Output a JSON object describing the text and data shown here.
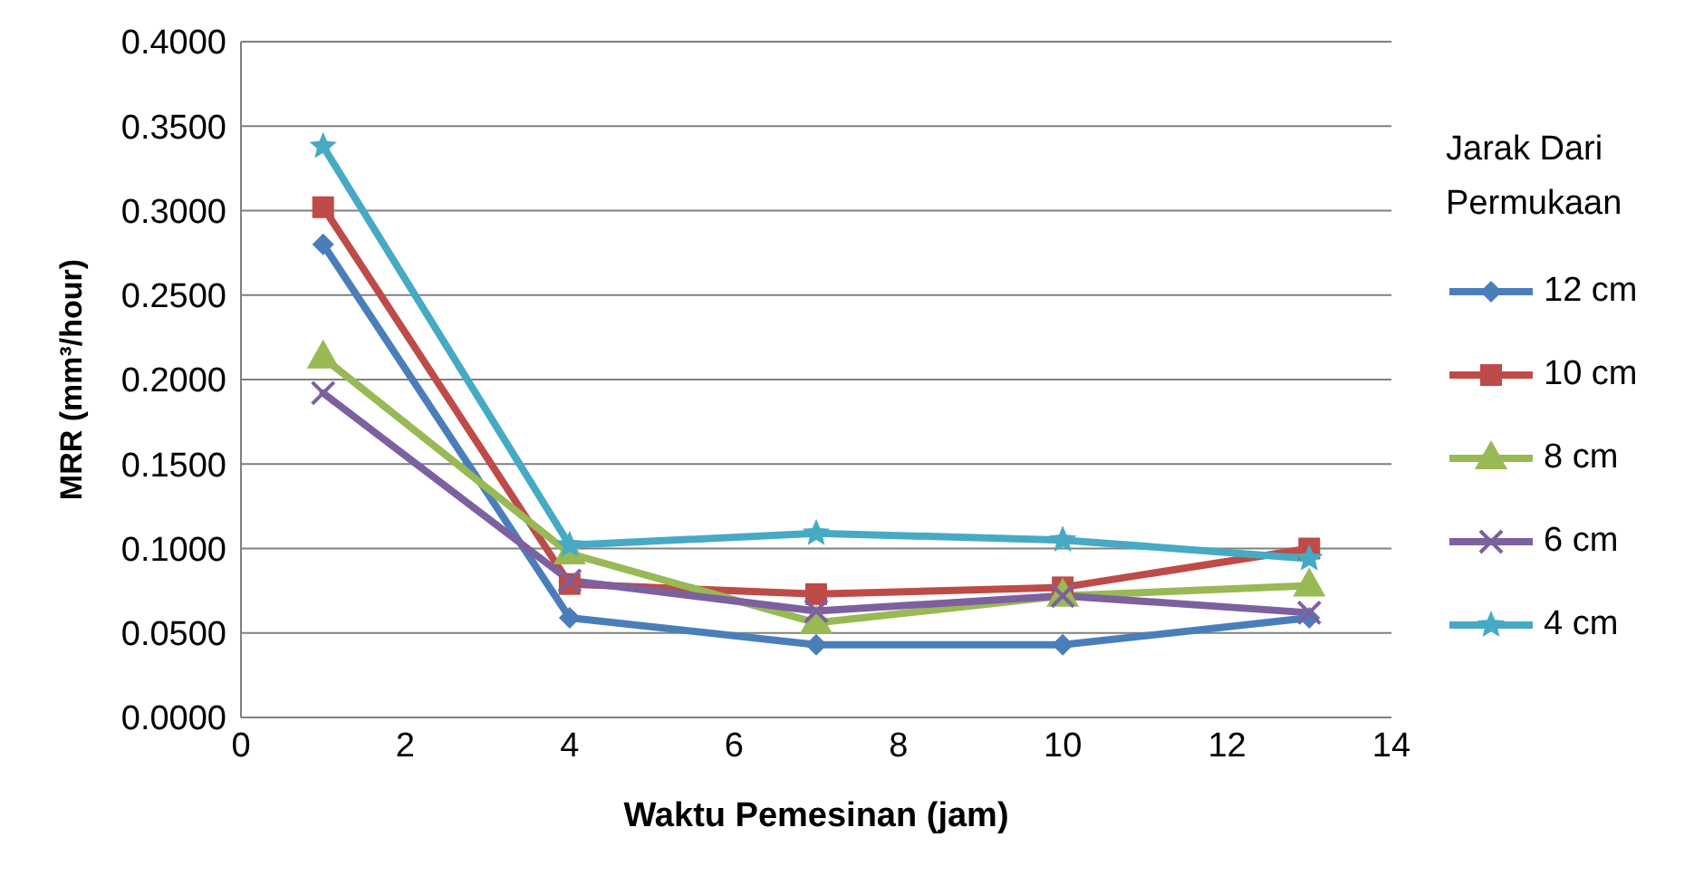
{
  "chart_data": {
    "type": "line",
    "xlabel": "Waktu Pemesinan (jam)",
    "ylabel": "MRR (mm³/hour)",
    "legend_title": "Jarak Dari Permukaan",
    "legend": "right",
    "grid": "y",
    "line_style": "solid",
    "x": [
      1,
      4,
      7,
      10,
      13
    ],
    "xlim": [
      0,
      14
    ],
    "xticks": [
      0,
      2,
      4,
      6,
      8,
      10,
      12,
      14
    ],
    "ylim": [
      0,
      0.4
    ],
    "yticks": [
      {
        "value": 0,
        "label": "0.0000"
      },
      {
        "value": 0.05,
        "label": "0.0500"
      },
      {
        "value": 0.1,
        "label": "0.1000"
      },
      {
        "value": 0.15,
        "label": "0.1500"
      },
      {
        "value": 0.2,
        "label": "0.2000"
      },
      {
        "value": 0.25,
        "label": "0.2500"
      },
      {
        "value": 0.3,
        "label": "0.3000"
      },
      {
        "value": 0.35,
        "label": "0.3500"
      },
      {
        "value": 0.4,
        "label": "0.4000"
      }
    ],
    "series": [
      {
        "name": "12 cm",
        "color": "#4a7ebb",
        "marker": "diamond",
        "values": [
          0.28,
          0.059,
          0.043,
          0.043,
          0.059
        ]
      },
      {
        "name": "10 cm",
        "color": "#be4b48",
        "marker": "square",
        "values": [
          0.302,
          0.079,
          0.073,
          0.077,
          0.1
        ]
      },
      {
        "name": "8 cm",
        "color": "#98b954",
        "marker": "triangle",
        "values": [
          0.213,
          0.097,
          0.056,
          0.072,
          0.078
        ]
      },
      {
        "name": "6 cm",
        "color": "#7d60a0",
        "marker": "cross",
        "values": [
          0.192,
          0.081,
          0.063,
          0.072,
          0.062
        ]
      },
      {
        "name": "4 cm",
        "color": "#46aac5",
        "marker": "star",
        "values": [
          0.338,
          0.102,
          0.109,
          0.105,
          0.094
        ]
      }
    ]
  }
}
